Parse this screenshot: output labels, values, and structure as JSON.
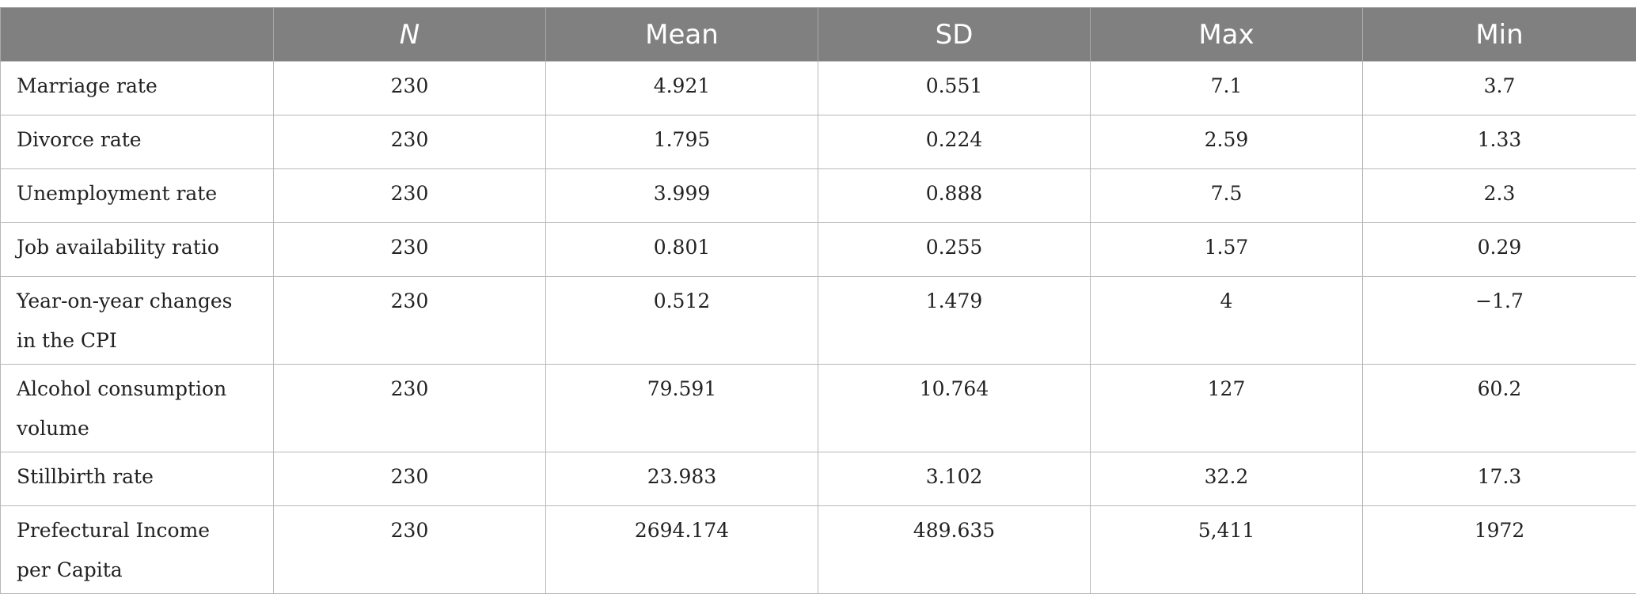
{
  "table": {
    "columns": [
      "",
      "N",
      "Mean",
      "SD",
      "Max",
      "Min"
    ],
    "rows": [
      {
        "label": "Marriage rate",
        "n": "230",
        "mean": "4.921",
        "sd": "0.551",
        "max": "7.1",
        "min": "3.7"
      },
      {
        "label": "Divorce rate",
        "n": "230",
        "mean": "1.795",
        "sd": "0.224",
        "max": "2.59",
        "min": "1.33"
      },
      {
        "label": "Unemployment rate",
        "n": "230",
        "mean": "3.999",
        "sd": "0.888",
        "max": "7.5",
        "min": "2.3"
      },
      {
        "label": "Job availability ratio",
        "n": "230",
        "mean": "0.801",
        "sd": "0.255",
        "max": "1.57",
        "min": "0.29"
      },
      {
        "label": "Year-on-year changes in the CPI",
        "n": "230",
        "mean": "0.512",
        "sd": "1.479",
        "max": "4",
        "min": "−1.7"
      },
      {
        "label": "Alcohol consumption volume",
        "n": "230",
        "mean": "79.591",
        "sd": "10.764",
        "max": "127",
        "min": "60.2"
      },
      {
        "label": "Stillbirth rate",
        "n": "230",
        "mean": "23.983",
        "sd": "3.102",
        "max": "32.2",
        "min": "17.3"
      },
      {
        "label": "Prefectural Income per Capita",
        "n": "230",
        "mean": "2694.174",
        "sd": "489.635",
        "max": "5,411",
        "min": "1972"
      }
    ]
  },
  "colors": {
    "header_bg": "#808080",
    "header_text": "#ffffff",
    "border": "#b8b8b8"
  }
}
